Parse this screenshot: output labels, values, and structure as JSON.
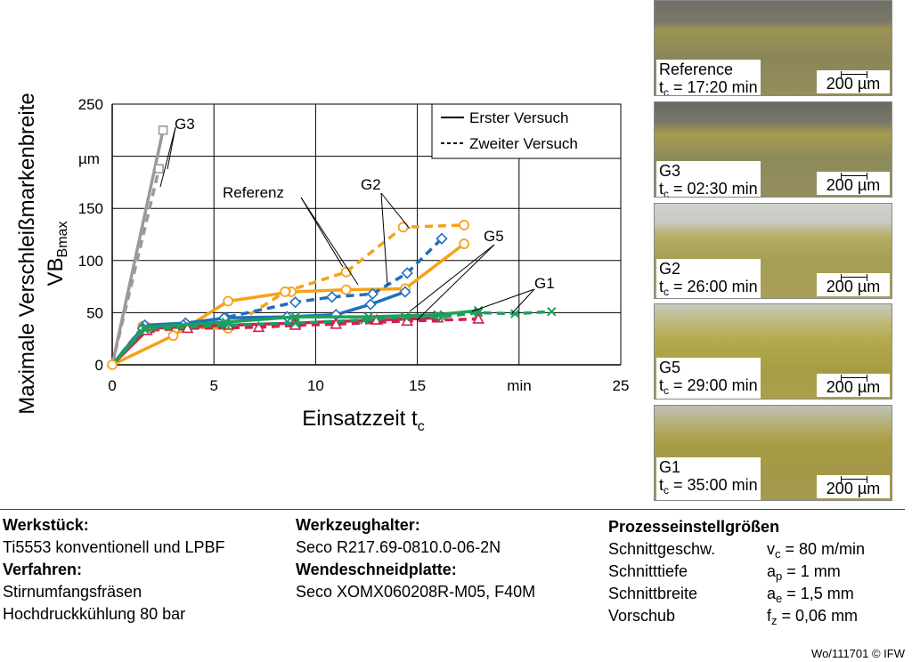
{
  "chart_data": {
    "type": "line",
    "ylabel_line1": "Maximale Verschleißmarkenbreite",
    "ylabel_line2": "VB",
    "ylabel_sub": "Bmax",
    "yunit": "µm",
    "xlabel": "Einsatzzeit t",
    "xlabel_sub": "c",
    "xunit": "min",
    "xlim": [
      0,
      25
    ],
    "ylim": [
      0,
      250
    ],
    "xticks": [
      "0",
      "5",
      "10",
      "15",
      "25"
    ],
    "yticks": [
      "0",
      "50",
      "100",
      "150",
      "200",
      "250"
    ],
    "grid": true,
    "legend": {
      "placement": "top-right",
      "first": "Erster Versuch",
      "second": "Zweiter Versuch"
    },
    "annotations": [
      "G3",
      "Referenz",
      "G2",
      "G5",
      "G1"
    ],
    "series": [
      {
        "group": "G3",
        "color": "#9a9a9a",
        "dash": false,
        "marker": "square",
        "x": [
          0,
          2.5
        ],
        "y": [
          0,
          225
        ]
      },
      {
        "group": "G3",
        "color": "#9a9a9a",
        "dash": true,
        "marker": "square",
        "x": [
          0,
          2.3
        ],
        "y": [
          0,
          188
        ]
      },
      {
        "group": "Referenz",
        "color": "#f5a21b",
        "dash": false,
        "marker": "circle",
        "x": [
          0,
          3,
          5.7,
          8.8,
          11.5,
          14.4,
          17.3
        ],
        "y": [
          0,
          28,
          61,
          70,
          72,
          73,
          116
        ]
      },
      {
        "group": "Referenz",
        "color": "#f5a21b",
        "dash": true,
        "marker": "circle",
        "x": [
          0,
          1.5,
          5.7,
          8.5,
          11.5,
          14.3,
          17.3
        ],
        "y": [
          0,
          37,
          35,
          70,
          89,
          132,
          134
        ]
      },
      {
        "group": "G2",
        "color": "#1f6fbf",
        "dash": false,
        "marker": "diamond",
        "x": [
          0,
          1.6,
          3.6,
          5.6,
          8.6,
          11,
          12.7,
          14.4
        ],
        "y": [
          0,
          38,
          40,
          45,
          46,
          48,
          58,
          70
        ]
      },
      {
        "group": "G2",
        "color": "#1f6fbf",
        "dash": true,
        "marker": "diamond",
        "x": [
          0,
          1.5,
          3.5,
          5.5,
          9,
          10.8,
          12.8,
          14.5,
          16.2
        ],
        "y": [
          0,
          35,
          38,
          45,
          60,
          65,
          68,
          88,
          121
        ]
      },
      {
        "group": "G5",
        "color": "#d11f50",
        "dash": false,
        "marker": "triangle",
        "x": [
          0,
          1.8,
          5.7,
          9,
          13,
          16
        ],
        "y": [
          0,
          35,
          38,
          40,
          43,
          45
        ]
      },
      {
        "group": "G5",
        "color": "#d11f50",
        "dash": true,
        "marker": "triangle",
        "x": [
          0,
          1.7,
          3.7,
          7.2,
          9,
          11,
          14.5,
          18
        ],
        "y": [
          0,
          33,
          35,
          36,
          38,
          39,
          42,
          44
        ]
      },
      {
        "group": "G1",
        "color": "#1aa05c",
        "dash": false,
        "marker": "x",
        "x": [
          0,
          1.6,
          5.6,
          9,
          12.6,
          16,
          18
        ],
        "y": [
          0,
          36,
          41,
          46,
          46,
          48,
          52
        ]
      },
      {
        "group": "G1",
        "color": "#1aa05c",
        "dash": true,
        "marker": "x",
        "x": [
          0,
          1.6,
          5.6,
          9,
          12.4,
          14.4,
          16.2,
          18,
          19.8,
          21.6
        ],
        "y": [
          0,
          34,
          38,
          40,
          43,
          46,
          46,
          50,
          49,
          51
        ]
      }
    ]
  },
  "photos": [
    {
      "name": "Reference",
      "time": " = 17:20 min",
      "scale": "200 µm"
    },
    {
      "name": "G3",
      "time": " = 02:30 min",
      "scale": "200 µm"
    },
    {
      "name": "G2",
      "time": " = 26:00 min",
      "scale": "200 µm"
    },
    {
      "name": "G5",
      "time": " = 29:00 min",
      "scale": "200 µm"
    },
    {
      "name": "G1",
      "time": " = 35:00 min",
      "scale": "200 µm"
    }
  ],
  "photo_t": "t",
  "photo_t_sub": "c",
  "info": {
    "werkstueck_h": "Werkstück:",
    "werkstueck": "Ti5553 konventionell und LPBF",
    "verfahren_h": "Verfahren:",
    "verfahren1": "Stirnumfangsfräsen",
    "verfahren2": "Hochdruckkühlung 80 bar",
    "halter_h": "Werkzeughalter:",
    "halter": "Seco R217.69-0810.0-06-2N",
    "platte_h": "Wendeschneidplatte:",
    "platte": "Seco XOMX060208R-M05, F40M",
    "prozess_h": "Prozesseinstellgrößen",
    "params": [
      {
        "name": "Schnittgeschw.",
        "sym": "v",
        "sub": "c",
        "val": " = 80 m/min"
      },
      {
        "name": "Schnitttiefe",
        "sym": "a",
        "sub": "p",
        "val": " = 1 mm"
      },
      {
        "name": "Schnittbreite",
        "sym": "a",
        "sub": "e",
        "val": " = 1,5 mm"
      },
      {
        "name": "Vorschub",
        "sym": "f",
        "sub": "z",
        "val": "  = 0,06 mm"
      }
    ]
  },
  "footer": "Wo/111701 © IFW"
}
